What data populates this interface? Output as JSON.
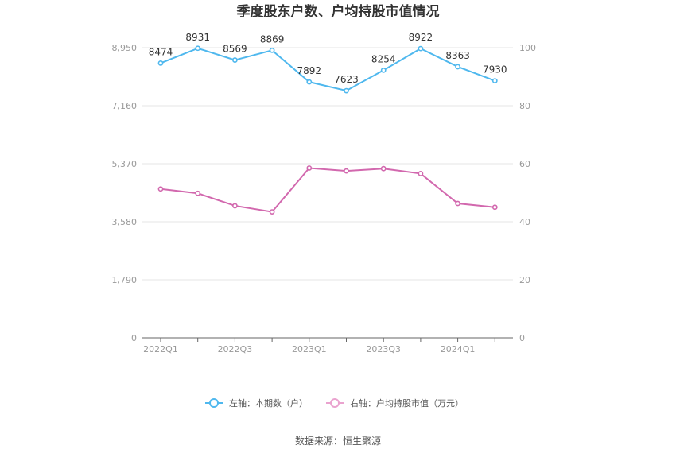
{
  "chart_data": {
    "type": "line",
    "title": "季度股东户数、户均持股市值情况",
    "x": [
      "2022Q1",
      "2022Q2",
      "2022Q3",
      "2022Q4",
      "2023Q1",
      "2023Q2",
      "2023Q3",
      "2023Q4",
      "2024Q1",
      "2024Q2"
    ],
    "x_tick_labels": [
      "2022Q1",
      "2022Q3",
      "2023Q1",
      "2023Q3",
      "2024Q1"
    ],
    "left_axis": {
      "ticks": [
        "0",
        "1,790",
        "3,580",
        "5,370",
        "7,160",
        "8,950"
      ],
      "ylim": [
        0,
        8950
      ]
    },
    "right_axis": {
      "ticks": [
        "0",
        "20",
        "40",
        "60",
        "80",
        "100"
      ],
      "ylim": [
        0,
        100
      ]
    },
    "series": [
      {
        "name": "左轴：本期数（户）",
        "axis": "left",
        "color": "#4fb8ee",
        "values": [
          8474,
          8931,
          8569,
          8869,
          7892,
          7623,
          8254,
          8922,
          8363,
          7930
        ],
        "labels": [
          "8474",
          "8931",
          "8569",
          "8869",
          "7892",
          "7623",
          "8254",
          "8922",
          "8363",
          "7930"
        ]
      },
      {
        "name": "右轴：户均持股市值（万元）",
        "axis": "right",
        "color": "#d268ae",
        "values": [
          51.3,
          49.8,
          45.5,
          43.4,
          58.5,
          57.5,
          58.3,
          56.6,
          46.3,
          45.0
        ]
      }
    ],
    "grid": true,
    "legend_position": "bottom"
  },
  "source": "数据来源：恒生聚源"
}
